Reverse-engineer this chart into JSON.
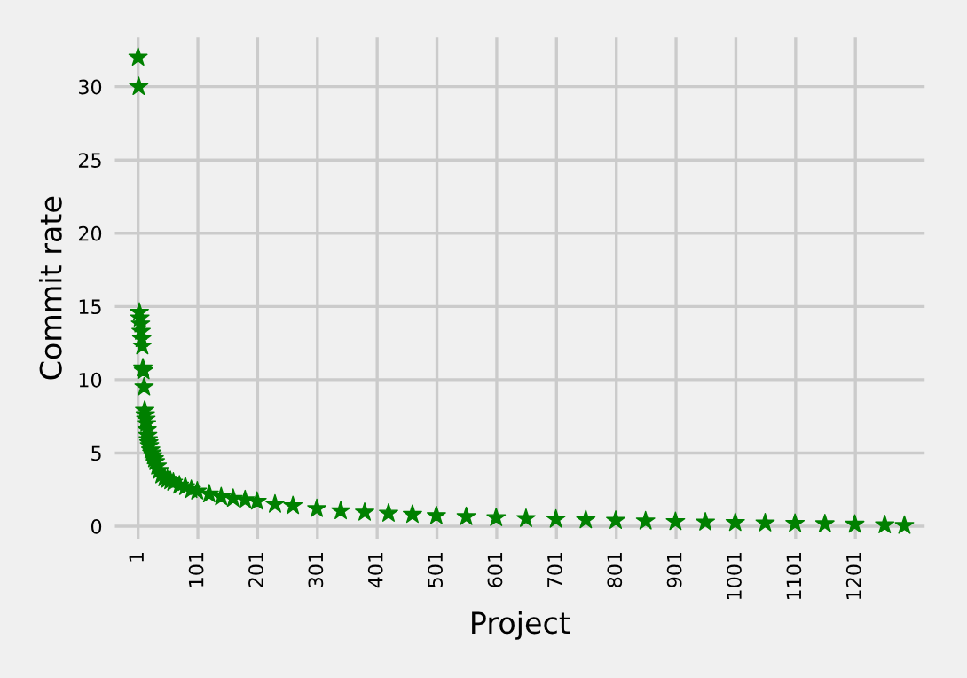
{
  "chart_data": {
    "type": "scatter",
    "xlabel": "Project",
    "ylabel": "Commit rate",
    "marker": "star",
    "grid": true,
    "xlim": [
      -44,
      1323
    ],
    "ylim": [
      -1.1,
      33.6
    ],
    "xticks": [
      1,
      101,
      201,
      301,
      401,
      501,
      601,
      701,
      801,
      901,
      1001,
      1101,
      1201
    ],
    "yticks": [
      0,
      5,
      10,
      15,
      20,
      25,
      30
    ],
    "series": [
      {
        "color": "#008000",
        "x": [
          1,
          2,
          3,
          4,
          5,
          6,
          7,
          8,
          9,
          10,
          11,
          12,
          13,
          14,
          15,
          16,
          17,
          18,
          19,
          20,
          22,
          24,
          26,
          28,
          30,
          33,
          36,
          40,
          45,
          50,
          55,
          60,
          70,
          80,
          90,
          100,
          120,
          140,
          160,
          180,
          200,
          230,
          260,
          300,
          340,
          380,
          420,
          460,
          500,
          550,
          600,
          650,
          700,
          750,
          800,
          850,
          900,
          950,
          1000,
          1050,
          1100,
          1150,
          1200,
          1250,
          1283
        ],
        "values": [
          32,
          30,
          14.6,
          14.2,
          13.8,
          13.3,
          12.8,
          12.3,
          10.8,
          10.6,
          9.5,
          7.9,
          7.6,
          7.3,
          7.0,
          6.6,
          6.2,
          5.9,
          5.7,
          5.5,
          5.2,
          5.0,
          4.8,
          4.6,
          4.4,
          4.1,
          3.8,
          3.5,
          3.3,
          3.2,
          3.1,
          3.0,
          2.8,
          2.7,
          2.5,
          2.4,
          2.2,
          2.0,
          1.9,
          1.8,
          1.7,
          1.5,
          1.4,
          1.2,
          1.05,
          0.95,
          0.88,
          0.8,
          0.72,
          0.65,
          0.58,
          0.52,
          0.47,
          0.43,
          0.39,
          0.35,
          0.31,
          0.28,
          0.25,
          0.22,
          0.19,
          0.16,
          0.13,
          0.09,
          0.05
        ]
      }
    ]
  }
}
